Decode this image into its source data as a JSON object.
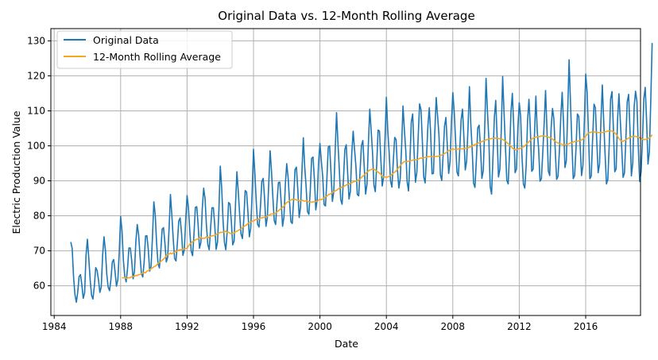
{
  "chart_data": {
    "type": "line",
    "title": "Original Data vs. 12-Month Rolling Average",
    "xlabel": "Date",
    "ylabel": "Electric Production Value",
    "xlim": [
      1983.8,
      2019.3
    ],
    "ylim": [
      51.5,
      133.5
    ],
    "x_ticks": [
      1984,
      1988,
      1992,
      1996,
      2000,
      2004,
      2008,
      2012,
      2016
    ],
    "y_ticks": [
      60,
      70,
      80,
      90,
      100,
      110,
      120,
      130
    ],
    "grid": true,
    "legend_position": "top-left",
    "x_start_year": 1985,
    "x_start_month": 1,
    "series": [
      {
        "name": "Original Data",
        "color": "#1f77b4",
        "values": [
          72.5,
          70.7,
          62.5,
          57.5,
          55.3,
          58.1,
          62.6,
          63.2,
          60.2,
          56.4,
          58.0,
          68.7,
          73.3,
          67.9,
          61.7,
          57.3,
          56.2,
          59.8,
          65.2,
          64.4,
          61.7,
          58.1,
          59.6,
          68.7,
          74.0,
          70.2,
          63.3,
          59.6,
          58.6,
          61.8,
          66.8,
          67.5,
          63.9,
          59.9,
          61.7,
          69.5,
          79.8,
          75.6,
          67.3,
          62.7,
          61.1,
          64.9,
          70.8,
          70.8,
          67.2,
          62.0,
          64.1,
          72.6,
          77.5,
          74.6,
          68.7,
          63.6,
          62.5,
          66.8,
          74.2,
          74.3,
          70.3,
          64.2,
          65.5,
          73.8,
          84.0,
          80.3,
          72.2,
          66.4,
          65.1,
          69.7,
          76.2,
          76.6,
          72.2,
          66.8,
          68.2,
          76.3,
          86.1,
          80.2,
          73.4,
          67.8,
          67.1,
          72.2,
          78.5,
          79.4,
          75.1,
          68.7,
          70.2,
          78.7,
          85.8,
          82.3,
          75.5,
          69.9,
          68.6,
          74.8,
          82.4,
          82.6,
          77.4,
          70.7,
          72.4,
          82.1,
          87.9,
          84.9,
          77.2,
          71.8,
          70.3,
          76.4,
          82.3,
          82.3,
          77.3,
          70.4,
          72.5,
          81.6,
          94.2,
          88.1,
          78.6,
          72.4,
          70.3,
          75.6,
          83.8,
          83.4,
          78.3,
          71.7,
          72.8,
          83.3,
          92.6,
          86.9,
          80.4,
          74.8,
          73.5,
          79.1,
          87.2,
          86.8,
          80.9,
          74.0,
          76.5,
          86.4,
          99.0,
          92.0,
          84.0,
          77.5,
          76.8,
          82.4,
          89.8,
          90.7,
          85.0,
          77.0,
          79.5,
          89.0,
          98.6,
          92.8,
          85.2,
          78.6,
          77.5,
          84.0,
          89.5,
          89.6,
          83.9,
          77.0,
          79.7,
          88.9,
          94.9,
          91.0,
          84.3,
          78.3,
          77.8,
          84.8,
          93.2,
          93.9,
          87.5,
          79.5,
          82.5,
          92.8,
          102.3,
          94.0,
          88.4,
          81.2,
          80.4,
          87.1,
          96.4,
          96.8,
          90.4,
          81.7,
          84.6,
          95.1,
          100.7,
          95.7,
          91.2,
          83.2,
          82.8,
          90.3,
          99.6,
          100.0,
          92.2,
          84.1,
          87.0,
          98.5,
          109.5,
          100.8,
          93.2,
          84.6,
          83.3,
          90.5,
          99.0,
          100.3,
          92.4,
          84.8,
          87.0,
          97.9,
          104.2,
          99.0,
          94.1,
          86.1,
          85.7,
          92.9,
          100.1,
          101.5,
          94.0,
          86.2,
          89.1,
          100.7,
          110.5,
          104.4,
          98.0,
          88.8,
          86.9,
          94.5,
          104.5,
          104.2,
          96.1,
          88.5,
          91.1,
          102.0,
          113.9,
          104.4,
          98.1,
          89.9,
          88.2,
          95.7,
          102.4,
          101.8,
          93.3,
          87.9,
          90.6,
          99.7,
          111.4,
          104.6,
          98.6,
          89.7,
          87.1,
          95.9,
          106.8,
          109.1,
          98.5,
          89.6,
          92.4,
          102.8,
          112.0,
          110.3,
          101.3,
          91.1,
          89.4,
          96.8,
          105.8,
          110.9,
          103.3,
          92.0,
          92.1,
          104.1,
          113.8,
          108.5,
          103.0,
          91.7,
          90.1,
          97.4,
          105.6,
          108.1,
          100.2,
          92.1,
          95.5,
          106.7,
          115.2,
          109.8,
          101.4,
          92.5,
          91.4,
          98.9,
          107.4,
          110.5,
          102.5,
          93.1,
          95.7,
          105.4,
          116.9,
          106.1,
          98.9,
          89.3,
          88.1,
          95.8,
          105.1,
          105.9,
          99.3,
          90.7,
          92.9,
          104.5,
          119.3,
          110.0,
          102.3,
          88.3,
          86.2,
          96.6,
          108.1,
          113.0,
          102.5,
          91.1,
          93.3,
          104.4,
          119.8,
          109.5,
          99.9,
          90.1,
          89.1,
          98.4,
          109.6,
          115.0,
          105.7,
          92.3,
          93.4,
          105.3,
          112.3,
          108.4,
          96.8,
          89.1,
          87.9,
          94.4,
          107.2,
          113.3,
          104.9,
          92.7,
          93.3,
          103.1,
          114.2,
          104.2,
          99.1,
          89.9,
          90.6,
          98.2,
          106.5,
          115.8,
          104.8,
          92.8,
          91.5,
          104.9,
          110.7,
          107.7,
          98.7,
          90.4,
          91.3,
          98.5,
          108.2,
          115.3,
          106.4,
          93.8,
          95.7,
          110.0,
          124.6,
          112.4,
          100.9,
          90.6,
          91.5,
          99.3,
          109.1,
          108.4,
          100.0,
          91.5,
          94.4,
          106.7,
          120.5,
          115.4,
          103.5,
          90.6,
          91.3,
          101.9,
          111.9,
          110.9,
          101.3,
          92.3,
          94.8,
          107.0,
          117.4,
          107.1,
          97.6,
          89.1,
          90.4,
          100.4,
          113.4,
          115.5,
          105.0,
          92.6,
          93.4,
          107.4,
          114.9,
          107.2,
          99.6,
          91.0,
          92.2,
          101.8,
          112.6,
          114.7,
          104.5,
          91.4,
          95.1,
          111.1,
          115.6,
          112.7,
          99.7,
          89.8,
          92.6,
          101.7,
          113.4,
          116.7,
          107.1,
          94.8,
          98.3,
          112.7,
          129.4
        ]
      },
      {
        "name": "12-Month Rolling Average",
        "color": "#f5a623",
        "values": [
          62.2,
          62.3,
          62.4,
          62.1,
          62.2,
          62.3,
          62.3,
          62.6,
          62.7,
          62.7,
          63.0,
          62.9,
          63.2,
          63.2,
          63.5,
          63.6,
          63.8,
          63.7,
          64.2,
          64.3,
          64.6,
          64.9,
          65.1,
          65.4,
          65.6,
          65.9,
          66.4,
          66.7,
          66.9,
          67.3,
          67.6,
          68.0,
          68.6,
          68.9,
          69.0,
          69.4,
          69.1,
          69.4,
          69.6,
          69.8,
          69.9,
          70.2,
          70.3,
          70.3,
          70.5,
          70.5,
          70.7,
          70.6,
          71.4,
          71.9,
          72.3,
          72.6,
          72.8,
          73.1,
          73.3,
          73.4,
          73.6,
          73.9,
          73.5,
          73.6,
          73.6,
          74.0,
          73.6,
          73.9,
          74.1,
          74.3,
          74.3,
          74.4,
          74.7,
          74.9,
          75.0,
          75.3,
          75.2,
          75.4,
          75.4,
          75.6,
          75.2,
          75.3,
          75.0,
          74.9,
          75.0,
          75.1,
          75.4,
          75.6,
          75.8,
          76.1,
          76.3,
          76.6,
          76.9,
          77.2,
          77.4,
          77.8,
          78.1,
          78.2,
          78.4,
          78.5,
          78.8,
          79.0,
          78.9,
          79.1,
          79.4,
          79.4,
          79.5,
          79.6,
          79.7,
          79.9,
          80.1,
          80.4,
          80.5,
          80.5,
          80.5,
          80.8,
          81.1,
          81.4,
          81.8,
          82.1,
          82.4,
          82.8,
          83.3,
          83.8,
          84.0,
          84.3,
          84.5,
          84.7,
          84.7,
          84.7,
          84.5,
          84.5,
          84.3,
          84.3,
          84.5,
          84.3,
          84.2,
          84.3,
          84.2,
          84.0,
          83.9,
          83.9,
          84.0,
          84.0,
          84.1,
          84.1,
          84.5,
          84.7,
          84.6,
          84.8,
          85.1,
          85.4,
          85.6,
          86.0,
          86.2,
          86.3,
          86.7,
          86.9,
          87.1,
          87.3,
          87.6,
          87.9,
          88.0,
          88.3,
          88.3,
          88.6,
          88.8,
          89.0,
          89.1,
          89.3,
          89.4,
          89.7,
          89.8,
          89.9,
          90.0,
          90.2,
          90.5,
          91.0,
          91.3,
          91.7,
          92.1,
          92.4,
          92.8,
          93.1,
          93.2,
          93.4,
          93.3,
          93.1,
          92.7,
          92.5,
          92.2,
          91.8,
          91.4,
          91.1,
          91.1,
          91.0,
          91.1,
          91.3,
          91.5,
          91.8,
          92.2,
          92.5,
          92.8,
          93.3,
          93.8,
          94.3,
          94.8,
          95.2,
          95.5,
          95.5,
          95.5,
          95.6,
          95.7,
          95.8,
          95.9,
          96.0,
          96.0,
          96.0,
          96.2,
          96.4,
          96.5,
          96.5,
          96.6,
          96.7,
          96.8,
          96.9,
          96.9,
          96.9,
          96.9,
          96.9,
          96.9,
          97.0,
          97.0,
          97.1,
          97.2,
          97.4,
          97.6,
          97.8,
          98.0,
          98.3,
          98.6,
          98.8,
          99.0,
          99.1,
          99.0,
          99.0,
          99.0,
          99.1,
          99.1,
          99.1,
          99.1,
          99.2,
          99.3,
          99.4,
          99.4,
          99.6,
          99.8,
          100.0,
          100.2,
          100.4,
          100.5,
          100.7,
          100.9,
          101.1,
          101.2,
          101.4,
          101.6,
          101.7,
          101.8,
          101.9,
          102.0,
          102.1,
          102.1,
          102.2,
          102.2,
          102.2,
          102.1,
          102.0,
          101.9,
          101.8,
          101.6,
          101.3,
          101.0,
          100.6,
          100.2,
          99.8,
          99.4,
          99.1,
          98.9,
          98.9,
          99.1,
          99.2,
          99.3,
          99.5,
          99.7,
          100.0,
          100.4,
          100.8,
          101.2,
          101.6,
          101.9,
          102.2,
          102.4,
          102.5,
          102.6,
          102.6,
          102.7,
          102.8,
          102.8,
          102.8,
          102.7,
          102.6,
          102.5,
          102.4,
          102.2,
          101.9,
          101.6,
          101.3,
          101.0,
          100.8,
          100.6,
          100.5,
          100.4,
          100.3,
          100.3,
          100.3,
          100.4,
          100.6,
          100.8,
          100.9,
          101.1,
          101.2,
          101.3,
          101.3,
          101.4,
          101.5,
          101.7,
          101.9,
          102.3,
          102.8,
          103.3,
          103.6,
          103.8,
          103.9,
          104.0,
          104.0,
          103.9,
          103.9,
          103.8,
          103.8,
          103.8,
          103.8,
          103.9,
          104.0,
          104.1,
          104.2,
          104.3,
          104.3,
          104.2,
          104.0,
          103.7,
          103.3,
          102.7,
          102.1,
          101.6,
          101.3,
          101.3,
          101.5,
          101.7,
          102.0,
          102.2,
          102.4,
          102.6,
          102.7,
          102.7,
          102.7,
          102.6,
          102.5,
          102.3,
          102.1,
          101.9,
          101.8,
          101.8,
          101.9,
          102.1,
          102.3,
          102.6,
          103.2
        ]
      }
    ]
  }
}
